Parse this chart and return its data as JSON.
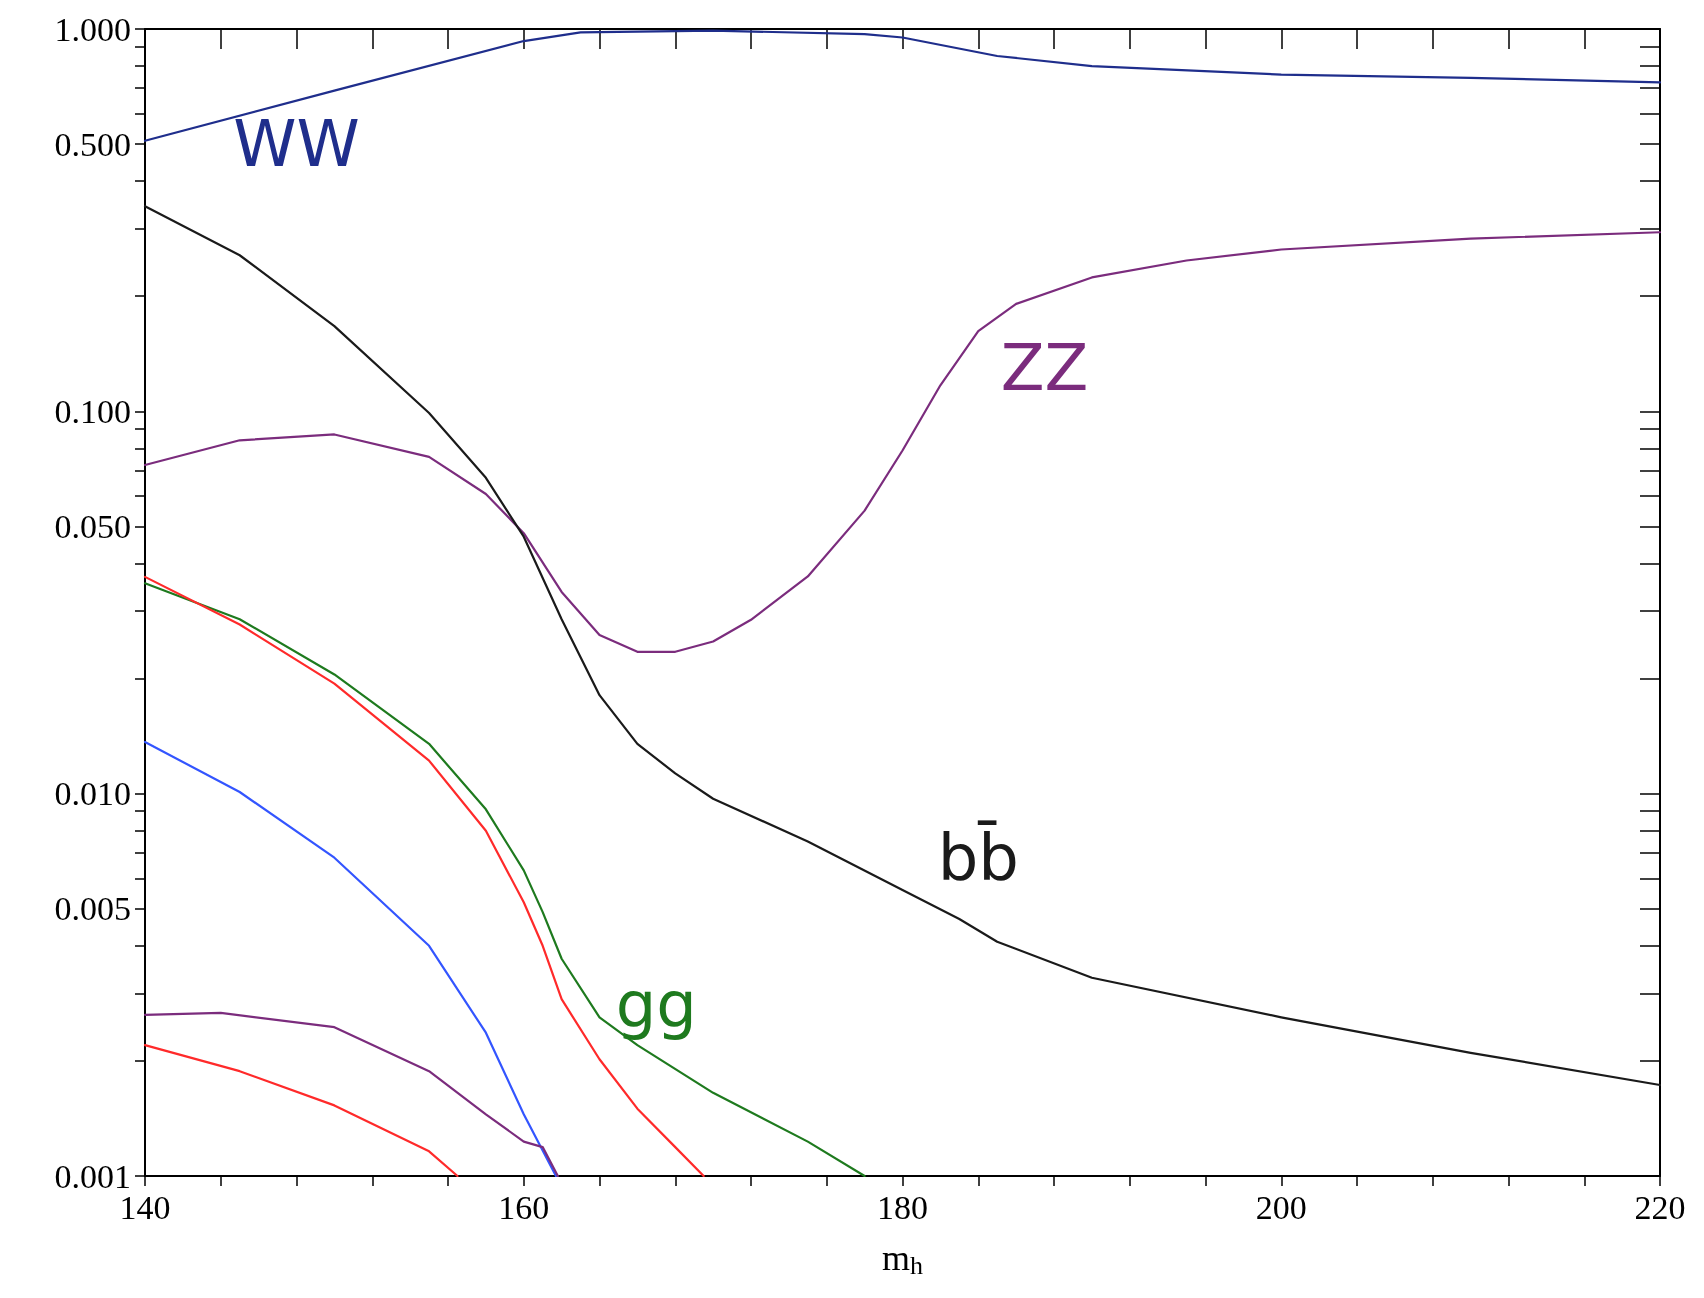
{
  "chart_data": {
    "type": "line",
    "xlabel": "m$_{h}$",
    "log": "y",
    "marker": "none",
    "line_style": "solid",
    "grid": false,
    "legend": false,
    "xlim": [
      140,
      220
    ],
    "xticks": [
      140,
      {
        "value": 144,
        "label": null
      },
      {
        "value": 148,
        "label": null
      },
      {
        "value": 152,
        "label": null
      },
      {
        "value": 156,
        "label": null
      },
      160,
      {
        "value": 164,
        "label": null
      },
      {
        "value": 168,
        "label": null
      },
      {
        "value": 172,
        "label": null
      },
      {
        "value": 176,
        "label": null
      },
      180,
      {
        "value": 184,
        "label": null
      },
      {
        "value": 188,
        "label": null
      },
      {
        "value": 192,
        "label": null
      },
      {
        "value": 196,
        "label": null
      },
      200,
      {
        "value": 204,
        "label": null
      },
      {
        "value": 208,
        "label": null
      },
      {
        "value": 212,
        "label": null
      },
      {
        "value": 216,
        "label": null
      },
      220
    ],
    "ylim": [
      0.001,
      1
    ],
    "yticks": [
      {
        "value": 0.001,
        "label": "0.001"
      },
      {
        "value": 0.002,
        "label": null
      },
      {
        "value": 0.003,
        "label": null
      },
      {
        "value": 0.004,
        "label": null
      },
      {
        "value": 0.005,
        "label": "0.005"
      },
      {
        "value": 0.006,
        "label": null
      },
      {
        "value": 0.007,
        "label": null
      },
      {
        "value": 0.008,
        "label": null
      },
      {
        "value": 0.009,
        "label": null
      },
      {
        "value": 0.01,
        "label": "0.010"
      },
      {
        "value": 0.02,
        "label": null
      },
      {
        "value": 0.03,
        "label": null
      },
      {
        "value": 0.04,
        "label": null
      },
      {
        "value": 0.05,
        "label": "0.050"
      },
      {
        "value": 0.06,
        "label": null
      },
      {
        "value": 0.07,
        "label": null
      },
      {
        "value": 0.08,
        "label": null
      },
      {
        "value": 0.09,
        "label": null
      },
      {
        "value": 0.1,
        "label": "0.100"
      },
      {
        "value": 0.2,
        "label": null
      },
      {
        "value": 0.3,
        "label": null
      },
      {
        "value": 0.4,
        "label": null
      },
      {
        "value": 0.5,
        "label": "0.500"
      },
      {
        "value": 0.6,
        "label": null
      },
      {
        "value": 0.7,
        "label": null
      },
      {
        "value": 0.8,
        "label": null
      },
      {
        "value": 0.9,
        "label": null
      },
      {
        "value": 1,
        "label": "1.000"
      }
    ],
    "series": [
      {
        "name": "WW",
        "color": "#1f2e8c",
        "x": [
          140,
          150,
          160,
          163,
          170,
          178,
          180,
          185,
          190,
          200,
          210,
          220
        ],
        "values": [
          0.51,
          0.69,
          0.93,
          0.98,
          0.99,
          0.97,
          0.95,
          0.85,
          0.8,
          0.76,
          0.745,
          0.725
        ]
      },
      {
        "name": "ZZ",
        "color": "#7b2c7d",
        "x": [
          140,
          145,
          150,
          155,
          158,
          160,
          162,
          164,
          166,
          168,
          170,
          172,
          175,
          178,
          180,
          182,
          184,
          186,
          190,
          195,
          200,
          210,
          220
        ],
        "values": [
          0.0724,
          0.084,
          0.087,
          0.076,
          0.0608,
          0.048,
          0.0337,
          0.026,
          0.0235,
          0.0235,
          0.025,
          0.0285,
          0.037,
          0.055,
          0.079,
          0.117,
          0.162,
          0.191,
          0.224,
          0.248,
          0.265,
          0.283,
          0.294
        ]
      },
      {
        "name": "bb̄",
        "color": "#1a1a1a",
        "x": [
          140,
          145,
          150,
          155,
          158,
          160,
          162,
          164,
          166,
          168,
          170,
          175,
          180,
          183,
          185,
          190,
          200,
          210,
          220
        ],
        "values": [
          0.344,
          0.256,
          0.167,
          0.099,
          0.067,
          0.047,
          0.0286,
          0.0181,
          0.0135,
          0.0113,
          0.0097,
          0.0075,
          0.0056,
          0.0047,
          0.0041,
          0.0033,
          0.0026,
          0.0021,
          0.00173
        ]
      },
      {
        "name": "gg",
        "color": "#1e7a1e",
        "x": [
          140,
          145,
          150,
          155,
          158,
          160,
          161,
          162,
          164,
          166,
          170,
          175,
          178
        ],
        "values": [
          0.0355,
          0.0286,
          0.0205,
          0.0135,
          0.0091,
          0.0063,
          0.0049,
          0.0037,
          0.0026,
          0.0022,
          0.00165,
          0.00123,
          0.001
        ]
      },
      {
        "color": "#ff2a2a",
        "x": [
          140,
          145,
          150,
          155,
          158,
          160,
          161,
          162,
          164,
          166,
          168,
          169.5
        ],
        "values": [
          0.0369,
          0.0277,
          0.0194,
          0.0122,
          0.008,
          0.0052,
          0.004,
          0.0029,
          0.00202,
          0.0015,
          0.00119,
          0.001
        ]
      },
      {
        "color": "#3355ff",
        "x": [
          140,
          145,
          150,
          155,
          158,
          160,
          161.7
        ],
        "values": [
          0.01365,
          0.0101,
          0.0068,
          0.004,
          0.00237,
          0.00145,
          0.001
        ]
      },
      {
        "color": "#7b2c7d",
        "x": [
          140,
          144,
          150,
          155,
          158,
          160,
          161,
          161.8
        ],
        "values": [
          0.00264,
          0.00267,
          0.00245,
          0.00188,
          0.00145,
          0.00123,
          0.00119,
          0.001
        ]
      },
      {
        "color": "#ff2a2a",
        "x": [
          140,
          145,
          150,
          155,
          156.5
        ],
        "values": [
          0.0022,
          0.00188,
          0.00153,
          0.00116,
          0.001
        ]
      }
    ]
  }
}
